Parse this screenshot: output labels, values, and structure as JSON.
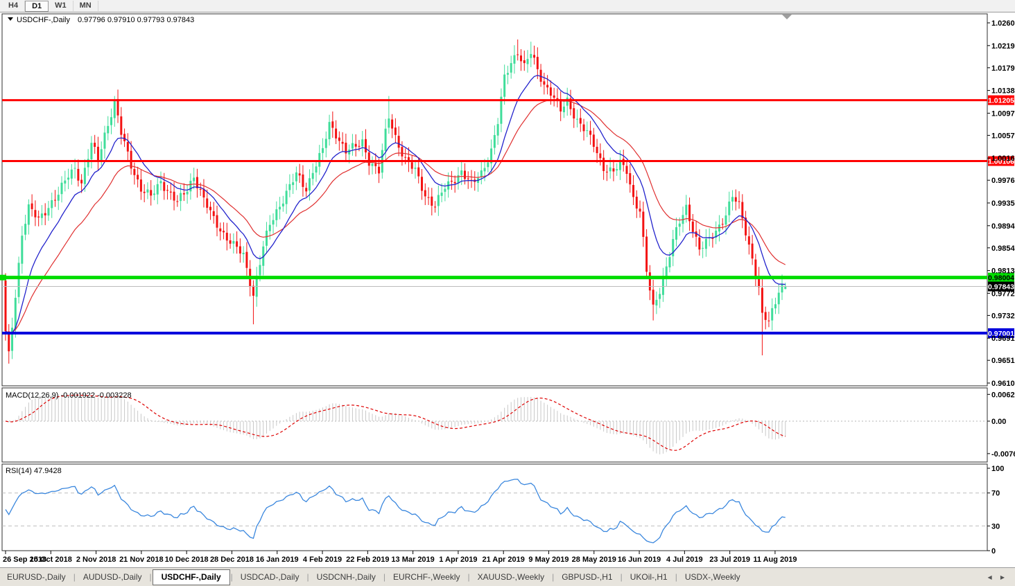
{
  "toolbar": {
    "timeframes": [
      {
        "label": "H4",
        "active": false
      },
      {
        "label": "D1",
        "active": true
      },
      {
        "label": "W1",
        "active": false
      },
      {
        "label": "MN",
        "active": false
      }
    ]
  },
  "chart": {
    "symbol": "USDCHF-,Daily",
    "ohlc": "0.97796 0.97910 0.97793 0.97843",
    "open": "0.97796",
    "high": "0.97910",
    "low": "0.97793",
    "close": "0.97843",
    "price_ticks": [
      "1.02600",
      "1.02190",
      "1.01790",
      "1.01380",
      "1.00970",
      "1.00570",
      "1.00160",
      "0.99760",
      "0.99350",
      "0.98940",
      "0.98540",
      "0.98130",
      "0.97720",
      "0.97320",
      "0.96910",
      "0.96510",
      "0.96100"
    ],
    "date_labels": [
      "26 Sep 2018",
      "15 Oct 2018",
      "2 Nov 2018",
      "21 Nov 2018",
      "10 Dec 2018",
      "28 Dec 2018",
      "16 Jan 2019",
      "4 Feb 2019",
      "22 Feb 2019",
      "13 Mar 2019",
      "1 Apr 2019",
      "21 Apr 2019",
      "9 May 2019",
      "28 May 2019",
      "16 Jun 2019",
      "4 Jul 2019",
      "23 Jul 2019",
      "11 Aug 2019"
    ],
    "hlines": [
      {
        "name": "resistance-line-upper",
        "price": 1.01205,
        "label": "1.01205",
        "color": "#FF0000",
        "box": "#FF0000",
        "fg": "#FFFFFF",
        "lw": 3
      },
      {
        "name": "resistance-line-lower",
        "price": 1.00106,
        "label": "1.00106",
        "color": "#FF0000",
        "box": "#FF0000",
        "fg": "#FFFFFF",
        "lw": 3
      },
      {
        "name": "support-line-green",
        "price": 0.98004,
        "label": "0.98004",
        "color": "#00DC00",
        "box": "#00DC00",
        "fg": "#000000",
        "lw": 5,
        "left_marker": true
      },
      {
        "name": "current-price-line",
        "price": 0.97843,
        "label": "0.97843",
        "color": "#BBBBBB",
        "box": "#000000",
        "fg": "#FFFFFF",
        "lw": 1
      },
      {
        "name": "support-line-blue",
        "price": 0.97001,
        "label": "0.97001",
        "color": "#0000DC",
        "box": "#0000DC",
        "fg": "#FFFFFF",
        "lw": 4
      }
    ],
    "candles": {
      "count": 237,
      "anchors": [
        [
          0,
          0.97
        ],
        [
          1,
          0.966
        ],
        [
          3,
          0.977
        ],
        [
          5,
          0.988
        ],
        [
          7,
          0.9925
        ],
        [
          10,
          0.9905
        ],
        [
          13,
          0.993
        ],
        [
          16,
          0.995
        ],
        [
          19,
          0.9985
        ],
        [
          21,
          1.0
        ],
        [
          23,
          0.997
        ],
        [
          26,
          1.004
        ],
        [
          28,
          1.0015
        ],
        [
          30,
          1.006
        ],
        [
          33,
          1.0115
        ],
        [
          35,
          1.006
        ],
        [
          38,
          1.0005
        ],
        [
          41,
          0.996
        ],
        [
          44,
          0.9945
        ],
        [
          47,
          0.9975
        ],
        [
          50,
          0.995
        ],
        [
          52,
          0.9935
        ],
        [
          55,
          0.996
        ],
        [
          57,
          0.9985
        ],
        [
          60,
          0.994
        ],
        [
          63,
          0.9905
        ],
        [
          66,
          0.988
        ],
        [
          69,
          0.9858
        ],
        [
          72,
          0.984
        ],
        [
          75,
          0.977
        ],
        [
          76,
          0.98
        ],
        [
          78,
          0.9855
        ],
        [
          80,
          0.9895
        ],
        [
          82,
          0.992
        ],
        [
          85,
          0.9955
        ],
        [
          88,
          0.9985
        ],
        [
          91,
          0.996
        ],
        [
          93,
          0.9995
        ],
        [
          96,
          1.003
        ],
        [
          98,
          1.0075
        ],
        [
          100,
          1.006
        ],
        [
          103,
          1.003
        ],
        [
          106,
          1.0035
        ],
        [
          108,
          1.0045
        ],
        [
          110,
          1.0012
        ],
        [
          113,
          0.9992
        ],
        [
          115,
          1.006
        ],
        [
          116,
          1.009
        ],
        [
          118,
          1.0055
        ],
        [
          121,
          1.0012
        ],
        [
          124,
          0.9992
        ],
        [
          127,
          0.995
        ],
        [
          130,
          0.993
        ],
        [
          133,
          0.9962
        ],
        [
          136,
          0.998
        ],
        [
          138,
          0.9992
        ],
        [
          141,
          0.9966
        ],
        [
          144,
          0.999
        ],
        [
          147,
          1.003
        ],
        [
          149,
          1.008
        ],
        [
          151,
          1.016
        ],
        [
          153,
          1.019
        ],
        [
          155,
          1.021
        ],
        [
          157,
          1.018
        ],
        [
          159,
          1.0205
        ],
        [
          161,
          1.0175
        ],
        [
          163,
          1.015
        ],
        [
          165,
          1.0135
        ],
        [
          168,
          1.01
        ],
        [
          170,
          1.012
        ],
        [
          173,
          1.0085
        ],
        [
          176,
          1.006
        ],
        [
          178,
          1.004
        ],
        [
          181,
          1.0
        ],
        [
          184,
          0.999
        ],
        [
          186,
          1.0005
        ],
        [
          188,
          0.9995
        ],
        [
          190,
          0.9945
        ],
        [
          192,
          0.992
        ],
        [
          194,
          0.981
        ],
        [
          196,
          0.9745
        ],
        [
          198,
          0.978
        ],
        [
          200,
          0.982
        ],
        [
          202,
          0.9865
        ],
        [
          204,
          0.99
        ],
        [
          206,
          0.9928
        ],
        [
          208,
          0.989
        ],
        [
          210,
          0.985
        ],
        [
          213,
          0.9868
        ],
        [
          216,
          0.9895
        ],
        [
          218,
          0.9915
        ],
        [
          220,
          0.9945
        ],
        [
          222,
          0.993
        ],
        [
          224,
          0.9885
        ],
        [
          226,
          0.9835
        ],
        [
          228,
          0.978
        ],
        [
          229,
          0.9728
        ],
        [
          231,
          0.9722
        ],
        [
          233,
          0.9758
        ],
        [
          235,
          0.9788
        ],
        [
          236,
          0.97843
        ]
      ],
      "wick_overrides": {
        "1": {
          "l": 0.9645
        },
        "33": {
          "h": 1.0128
        },
        "75": {
          "l": 0.9716
        },
        "116": {
          "h": 1.0128
        },
        "155": {
          "h": 1.023
        },
        "159": {
          "h": 1.0226
        },
        "196": {
          "l": 0.9723
        },
        "229": {
          "l": 0.966
        }
      },
      "last": {
        "o": 0.97796,
        "h": 0.9791,
        "l": 0.97793,
        "c": 0.97843
      }
    },
    "colors": {
      "up": "#3FDD9A",
      "down": "#F31212",
      "ma_fast": "#2222CC",
      "ma_slow": "#E03030",
      "bg": "#FFFFFF"
    }
  },
  "macd": {
    "label": "MACD(12,26,9) -0.001922 -0.003228",
    "fast": 12,
    "slow": 26,
    "signal_period": 9,
    "value": "-0.001922",
    "signal_value": "-0.003228",
    "axis_ticks": [
      "0.006286",
      "0.00",
      "-0.00762"
    ],
    "bar_color": "#C8C8C8",
    "signal_color": "#DE0000"
  },
  "rsi": {
    "label": "RSI(14) 47.9428",
    "period": 14,
    "value": "47.9428",
    "axis_ticks": [
      "100",
      "70",
      "30",
      "0"
    ],
    "levels": [
      70,
      30
    ],
    "line_color": "#3A87DE"
  },
  "tabs": {
    "items": [
      {
        "label": "EURUSD-,Daily",
        "active": false
      },
      {
        "label": "AUDUSD-,Daily",
        "active": false
      },
      {
        "label": "USDCHF-,Daily",
        "active": true
      },
      {
        "label": "USDCAD-,Daily",
        "active": false
      },
      {
        "label": "USDCNH-,Daily",
        "active": false
      },
      {
        "label": "EURCHF-,Weekly",
        "active": false
      },
      {
        "label": "XAUUSD-,Weekly",
        "active": false
      },
      {
        "label": "GBPUSD-,H1",
        "active": false
      },
      {
        "label": "UKOil-,H1",
        "active": false
      },
      {
        "label": "USDX-,Weekly",
        "active": false
      }
    ],
    "arrows": [
      "◀",
      "▶"
    ]
  }
}
